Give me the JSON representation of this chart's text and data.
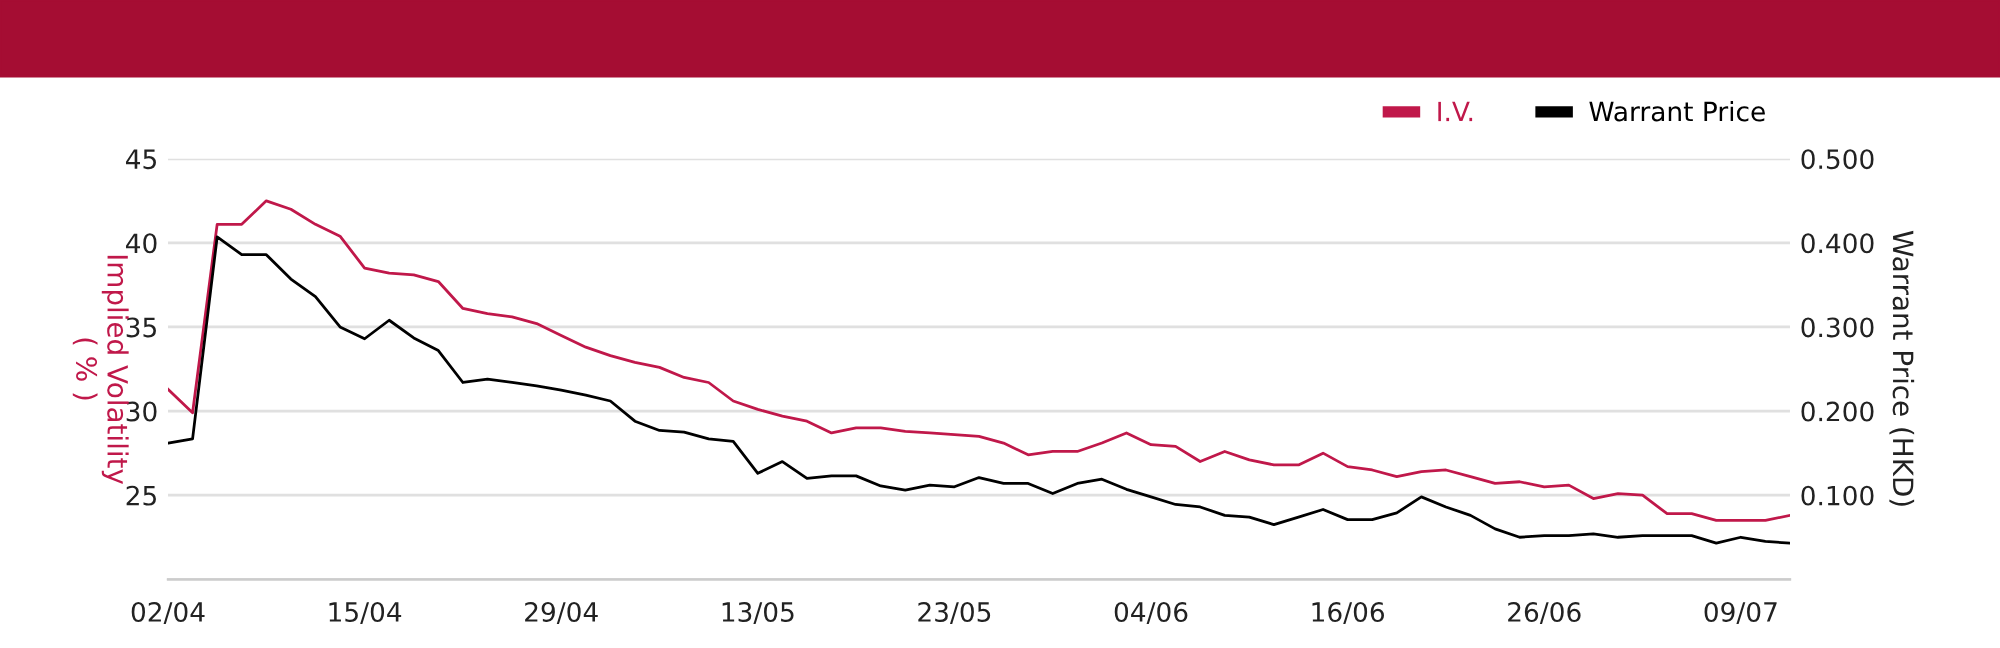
{
  "chart_data": {
    "type": "line",
    "categories": [
      "02/04",
      null,
      null,
      null,
      null,
      null,
      null,
      null,
      "15/04",
      null,
      null,
      null,
      null,
      null,
      null,
      null,
      "29/04",
      null,
      null,
      null,
      null,
      null,
      null,
      null,
      "13/05",
      null,
      null,
      null,
      null,
      null,
      null,
      null,
      "23/05",
      null,
      null,
      null,
      null,
      null,
      null,
      null,
      "04/06",
      null,
      null,
      null,
      null,
      null,
      null,
      null,
      "16/06",
      null,
      null,
      null,
      null,
      null,
      null,
      null,
      "26/06",
      null,
      null,
      null,
      null,
      null,
      null,
      null,
      "09/07",
      null,
      null
    ],
    "series": [
      {
        "name": "I.V.",
        "color": "#c0184a",
        "values": [
          31.3,
          29.9,
          41.1,
          41.1,
          42.5,
          42.0,
          41.1,
          40.4,
          38.5,
          38.2,
          38.1,
          37.7,
          36.1,
          35.8,
          35.6,
          35.2,
          34.5,
          33.8,
          33.3,
          32.9,
          32.6,
          32.0,
          31.7,
          30.6,
          30.1,
          29.7,
          29.4,
          28.7,
          29.0,
          29.0,
          28.8,
          28.7,
          28.6,
          28.5,
          28.1,
          27.4,
          27.6,
          27.6,
          28.1,
          28.7,
          28.0,
          27.9,
          27.0,
          27.6,
          27.1,
          26.8,
          26.8,
          27.5,
          26.7,
          26.5,
          26.1,
          26.4,
          26.5,
          26.1,
          25.7,
          25.8,
          25.5,
          25.6,
          24.8,
          25.1,
          25.0,
          23.9,
          23.9,
          23.5,
          23.5,
          23.5,
          23.8
        ]
      },
      {
        "name": "Warrant Price",
        "color": "#000000",
        "axis": "y2",
        "values": [
          0.162,
          0.167,
          0.407,
          0.386,
          0.386,
          0.357,
          0.336,
          0.3,
          0.286,
          0.308,
          0.287,
          0.272,
          0.234,
          0.238,
          0.234,
          0.23,
          0.225,
          0.219,
          0.212,
          0.188,
          0.177,
          0.175,
          0.167,
          0.164,
          0.126,
          0.14,
          0.12,
          0.123,
          0.123,
          0.111,
          0.106,
          0.112,
          0.11,
          0.121,
          0.114,
          0.114,
          0.102,
          0.114,
          0.119,
          0.107,
          0.098,
          0.089,
          0.086,
          0.076,
          0.074,
          0.065,
          0.074,
          0.083,
          0.071,
          0.071,
          0.079,
          0.098,
          0.086,
          0.076,
          0.06,
          0.05,
          0.052,
          0.052,
          0.054,
          0.05,
          0.052,
          0.052,
          0.052,
          0.043,
          0.05,
          0.045,
          0.043
        ]
      }
    ],
    "ylabel": "Implied Volatility\n( % )",
    "y2label": "Warrant Price (HKD)",
    "ylim": [
      20,
      45
    ],
    "yticks": [
      25,
      30,
      35,
      40,
      45
    ],
    "y2lim": [
      0,
      0.5
    ],
    "y2ticks": [
      {
        "value": 0.1,
        "label": "0.100"
      },
      {
        "value": 0.2,
        "label": "0.200"
      },
      {
        "value": 0.3,
        "label": "0.300"
      },
      {
        "value": 0.4,
        "label": "0.400"
      },
      {
        "value": 0.5,
        "label": "0.500"
      }
    ],
    "grid": "y",
    "legend": "top right"
  }
}
